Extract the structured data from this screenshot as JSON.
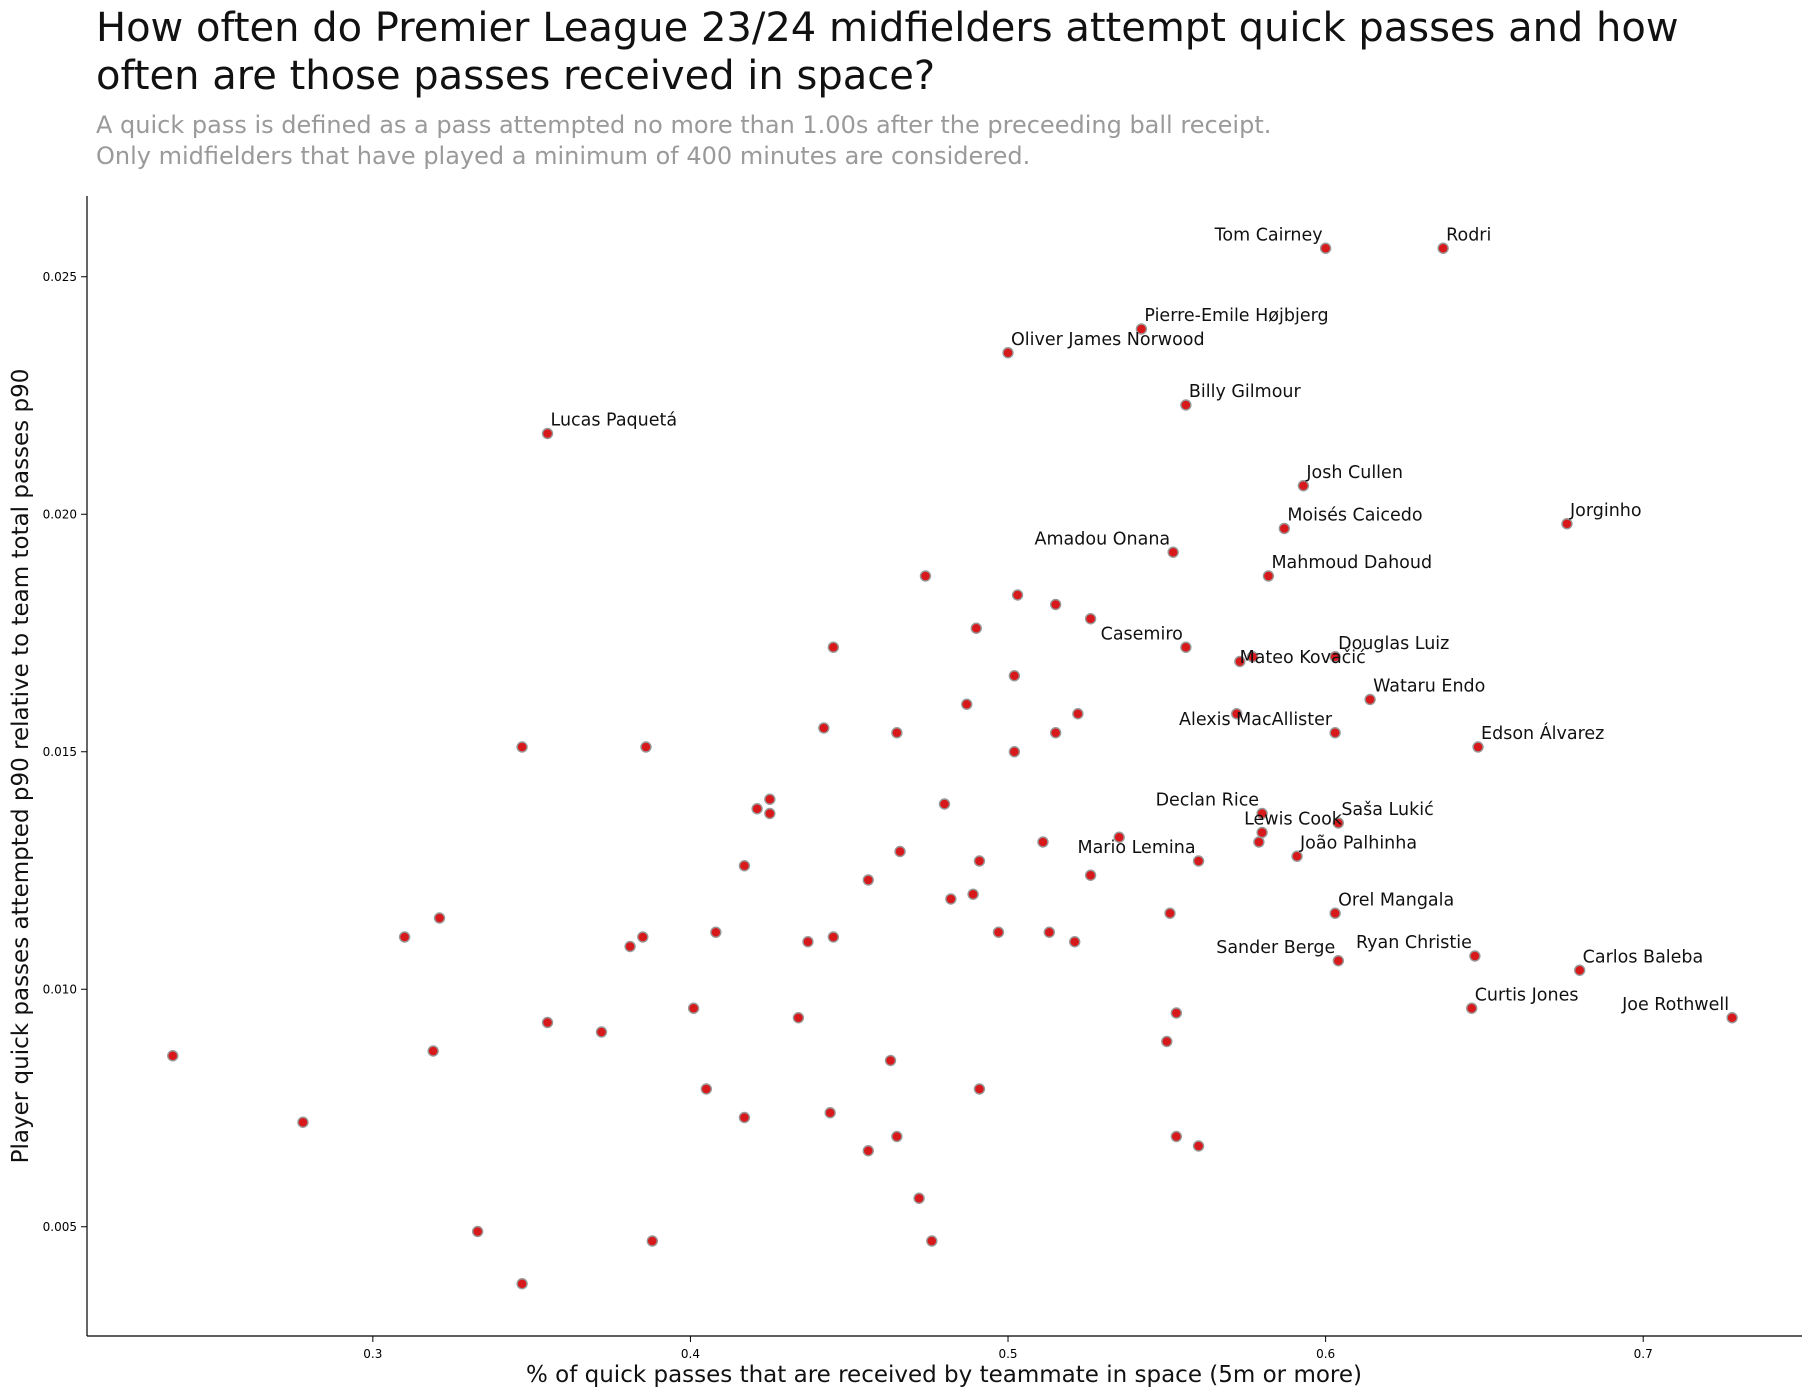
{
  "chart_data": {
    "type": "scatter",
    "title": "How often do Premier League 23/24 midfielders attempt quick passes and how often are those passes received in space?",
    "title_lines": [
      "How often do Premier League 23/24 midfielders attempt quick passes and how",
      "often are those passes received in space?"
    ],
    "subtitle_lines": [
      "A quick pass is defined as a pass attempted no more than 1.00s after the preceeding ball receipt.",
      "Only midfielders that have played a minimum of 400 minutes are considered."
    ],
    "xlabel": "% of quick passes that are received by teammate in space (5m or more)",
    "ylabel": "Player quick passes attempted p90 relative to team total passes p90",
    "xlim": [
      0.21,
      0.75
    ],
    "ylim": [
      0.0027,
      0.0267
    ],
    "xticks": [
      0.3,
      0.4,
      0.5,
      0.6,
      0.7
    ],
    "yticks": [
      0.005,
      0.01,
      0.015,
      0.02,
      0.025
    ],
    "xtick_labels": [
      "0.3",
      "0.4",
      "0.5",
      "0.6",
      "0.7"
    ],
    "ytick_labels": [
      "0.005",
      "0.010",
      "0.015",
      "0.020",
      "0.025"
    ],
    "grid": false,
    "marker_color": "#d7191c",
    "marker_edge": "#999999",
    "labeled_points": [
      {
        "name": "Tom Cairney",
        "x": 0.6,
        "y": 0.0256,
        "label_pos": "upper-left"
      },
      {
        "name": "Rodri",
        "x": 0.637,
        "y": 0.0256,
        "label_pos": "upper-right"
      },
      {
        "name": "Pierre-Emile Højbjerg",
        "x": 0.542,
        "y": 0.0239,
        "label_pos": "upper-right"
      },
      {
        "name": "Oliver James Norwood",
        "x": 0.5,
        "y": 0.0234,
        "label_pos": "upper-right"
      },
      {
        "name": "Billy Gilmour",
        "x": 0.556,
        "y": 0.0223,
        "label_pos": "upper-right"
      },
      {
        "name": "Lucas Paquetá",
        "x": 0.355,
        "y": 0.0217,
        "label_pos": "upper-right"
      },
      {
        "name": "Josh Cullen",
        "x": 0.593,
        "y": 0.0206,
        "label_pos": "upper-right"
      },
      {
        "name": "Jorginho",
        "x": 0.676,
        "y": 0.0198,
        "label_pos": "upper-right"
      },
      {
        "name": "Moisés Caicedo",
        "x": 0.587,
        "y": 0.0197,
        "label_pos": "upper-right"
      },
      {
        "name": "Amadou Onana",
        "x": 0.552,
        "y": 0.0192,
        "label_pos": "upper-left"
      },
      {
        "name": "Mahmoud Dahoud",
        "x": 0.582,
        "y": 0.0187,
        "label_pos": "upper-right"
      },
      {
        "name": "Casemiro",
        "x": 0.556,
        "y": 0.0172,
        "label_pos": "upper-left"
      },
      {
        "name": "Douglas Luiz",
        "x": 0.603,
        "y": 0.017,
        "label_pos": "upper-right"
      },
      {
        "name": "Mateo Kovačić",
        "x": 0.577,
        "y": 0.017,
        "label_pos": "lower-right-under"
      },
      {
        "name": "Wataru Endo",
        "x": 0.614,
        "y": 0.0161,
        "label_pos": "upper-right"
      },
      {
        "name": "Alexis MacAllister",
        "x": 0.603,
        "y": 0.0154,
        "label_pos": "upper-left"
      },
      {
        "name": "Edson Álvarez",
        "x": 0.648,
        "y": 0.0151,
        "label_pos": "upper-right"
      },
      {
        "name": "Declan Rice",
        "x": 0.58,
        "y": 0.0137,
        "label_pos": "upper-left"
      },
      {
        "name": "Saša Lukić",
        "x": 0.604,
        "y": 0.0135,
        "label_pos": "upper-right"
      },
      {
        "name": "Lewis Cook",
        "x": 0.58,
        "y": 0.0133,
        "label_pos": "upper-right-under"
      },
      {
        "name": "Mario Lemina",
        "x": 0.56,
        "y": 0.0127,
        "label_pos": "upper-left"
      },
      {
        "name": "João Palhinha",
        "x": 0.591,
        "y": 0.0128,
        "label_pos": "upper-right"
      },
      {
        "name": "Orel Mangala",
        "x": 0.603,
        "y": 0.0116,
        "label_pos": "upper-right"
      },
      {
        "name": "Ryan Christie",
        "x": 0.647,
        "y": 0.0107,
        "label_pos": "upper-left"
      },
      {
        "name": "Sander Berge",
        "x": 0.604,
        "y": 0.0106,
        "label_pos": "upper-left"
      },
      {
        "name": "Carlos Baleba",
        "x": 0.68,
        "y": 0.0104,
        "label_pos": "upper-right"
      },
      {
        "name": "Curtis Jones",
        "x": 0.646,
        "y": 0.0096,
        "label_pos": "upper-right"
      },
      {
        "name": "Joe Rothwell",
        "x": 0.728,
        "y": 0.0094,
        "label_pos": "upper-left"
      }
    ],
    "points": [
      {
        "x": 0.237,
        "y": 0.0086
      },
      {
        "x": 0.278,
        "y": 0.0072
      },
      {
        "x": 0.31,
        "y": 0.0111
      },
      {
        "x": 0.319,
        "y": 0.0087
      },
      {
        "x": 0.321,
        "y": 0.0115
      },
      {
        "x": 0.333,
        "y": 0.0049
      },
      {
        "x": 0.347,
        "y": 0.0151
      },
      {
        "x": 0.347,
        "y": 0.0038
      },
      {
        "x": 0.355,
        "y": 0.0093
      },
      {
        "x": 0.372,
        "y": 0.0091
      },
      {
        "x": 0.381,
        "y": 0.0109
      },
      {
        "x": 0.385,
        "y": 0.0111
      },
      {
        "x": 0.386,
        "y": 0.0151
      },
      {
        "x": 0.388,
        "y": 0.0047
      },
      {
        "x": 0.401,
        "y": 0.0096
      },
      {
        "x": 0.405,
        "y": 0.0079
      },
      {
        "x": 0.408,
        "y": 0.0112
      },
      {
        "x": 0.417,
        "y": 0.0126
      },
      {
        "x": 0.417,
        "y": 0.0073
      },
      {
        "x": 0.421,
        "y": 0.0138
      },
      {
        "x": 0.425,
        "y": 0.014
      },
      {
        "x": 0.425,
        "y": 0.0137
      },
      {
        "x": 0.434,
        "y": 0.0094
      },
      {
        "x": 0.437,
        "y": 0.011
      },
      {
        "x": 0.442,
        "y": 0.0155
      },
      {
        "x": 0.444,
        "y": 0.0074
      },
      {
        "x": 0.445,
        "y": 0.0172
      },
      {
        "x": 0.445,
        "y": 0.0111
      },
      {
        "x": 0.456,
        "y": 0.0123
      },
      {
        "x": 0.456,
        "y": 0.0066
      },
      {
        "x": 0.463,
        "y": 0.0085
      },
      {
        "x": 0.465,
        "y": 0.0154
      },
      {
        "x": 0.465,
        "y": 0.0069
      },
      {
        "x": 0.466,
        "y": 0.0129
      },
      {
        "x": 0.472,
        "y": 0.0056
      },
      {
        "x": 0.474,
        "y": 0.0187
      },
      {
        "x": 0.476,
        "y": 0.0047
      },
      {
        "x": 0.48,
        "y": 0.0139
      },
      {
        "x": 0.482,
        "y": 0.0119
      },
      {
        "x": 0.487,
        "y": 0.016
      },
      {
        "x": 0.489,
        "y": 0.012
      },
      {
        "x": 0.49,
        "y": 0.0176
      },
      {
        "x": 0.491,
        "y": 0.0127
      },
      {
        "x": 0.491,
        "y": 0.0079
      },
      {
        "x": 0.497,
        "y": 0.0112
      },
      {
        "x": 0.502,
        "y": 0.015
      },
      {
        "x": 0.502,
        "y": 0.0166
      },
      {
        "x": 0.503,
        "y": 0.0183
      },
      {
        "x": 0.511,
        "y": 0.0131
      },
      {
        "x": 0.513,
        "y": 0.0112
      },
      {
        "x": 0.515,
        "y": 0.0154
      },
      {
        "x": 0.515,
        "y": 0.0181
      },
      {
        "x": 0.521,
        "y": 0.011
      },
      {
        "x": 0.522,
        "y": 0.0158
      },
      {
        "x": 0.526,
        "y": 0.0178
      },
      {
        "x": 0.526,
        "y": 0.0124
      },
      {
        "x": 0.535,
        "y": 0.0132
      },
      {
        "x": 0.55,
        "y": 0.0089
      },
      {
        "x": 0.551,
        "y": 0.0116
      },
      {
        "x": 0.553,
        "y": 0.0095
      },
      {
        "x": 0.553,
        "y": 0.0069
      },
      {
        "x": 0.56,
        "y": 0.0067
      },
      {
        "x": 0.572,
        "y": 0.0158
      },
      {
        "x": 0.573,
        "y": 0.0169
      },
      {
        "x": 0.579,
        "y": 0.0131
      }
    ]
  }
}
